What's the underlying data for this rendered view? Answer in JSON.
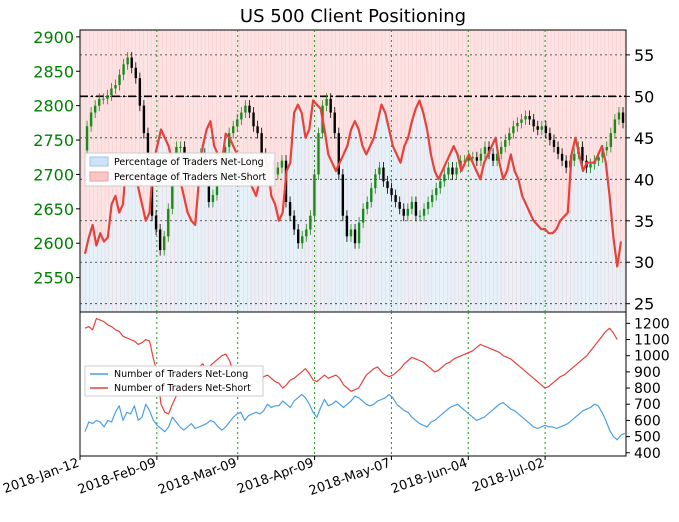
{
  "chart_data": [
    {
      "type": "candlestick-with-line",
      "title": "US 500 Client Positioning",
      "x_ticks": [
        "2018-Jan-12",
        "2018-Feb-09",
        "2018-Mar-09",
        "2018-Apr-09",
        "2018-May-07",
        "2018-Jun-04",
        "2018-Jul-02"
      ],
      "y_left": {
        "ticks": [
          2550,
          2600,
          2650,
          2700,
          2750,
          2800,
          2850,
          2900
        ],
        "range": [
          2500,
          2910
        ],
        "color": "#008000"
      },
      "y_right": {
        "ticks": [
          25,
          30,
          35,
          40,
          45,
          50,
          55
        ],
        "range": [
          24,
          58
        ]
      },
      "legend": {
        "position": "left",
        "entries": [
          "Percentage of Traders Net-Long",
          "Percentage of Traders Net-Short"
        ]
      },
      "reference_line_right": 50,
      "grid": true,
      "series": [
        {
          "name": "Percentage of Traders Net-Short",
          "color": "#e8413a",
          "values": [
            31,
            33,
            34.5,
            32,
            33.5,
            32.5,
            33,
            37,
            38,
            36,
            37,
            43,
            42,
            41,
            39,
            37,
            35,
            36,
            42,
            44,
            46,
            45,
            44,
            42,
            41,
            40,
            38,
            36,
            35,
            34.5,
            40,
            44,
            46,
            47,
            44,
            43,
            42,
            45.5,
            45,
            44,
            43,
            42,
            41,
            40,
            39,
            38,
            40,
            41,
            42,
            38,
            37,
            35,
            36,
            41,
            42,
            48,
            49,
            48,
            45,
            46,
            49.5,
            49,
            48.5,
            46,
            43,
            42,
            41,
            42,
            43,
            44,
            46,
            47,
            46,
            44,
            43,
            44,
            45,
            47,
            49,
            48,
            46,
            44,
            43,
            42,
            44,
            45,
            47,
            48.5,
            49.5,
            48,
            46,
            43,
            41,
            40,
            41,
            42,
            43,
            44,
            43,
            41,
            42,
            43,
            42,
            41,
            40,
            42,
            43,
            44,
            45,
            42,
            40,
            41,
            43,
            41,
            40,
            38,
            37,
            36,
            35,
            34.5,
            34,
            34,
            33.5,
            33.5,
            34,
            35,
            35.5,
            36,
            43,
            45,
            43,
            41,
            42,
            42,
            42,
            43,
            44,
            42,
            38,
            33,
            29.5,
            32.5
          ]
        },
        {
          "name": "US 500",
          "ohlc_close": [
            2735,
            2770,
            2790,
            2800,
            2810,
            2810,
            2815,
            2825,
            2830,
            2845,
            2860,
            2870,
            2855,
            2840,
            2800,
            2760,
            2700,
            2640,
            2620,
            2590,
            2610,
            2650,
            2700,
            2740,
            2740,
            2720,
            2700,
            2710,
            2720,
            2730,
            2700,
            2660,
            2670,
            2700,
            2720,
            2740,
            2760,
            2770,
            2780,
            2790,
            2800,
            2790,
            2770,
            2760,
            2730,
            2720,
            2720,
            2700,
            2710,
            2720,
            2660,
            2640,
            2620,
            2600,
            2610,
            2620,
            2640,
            2700,
            2760,
            2800,
            2810,
            2790,
            2760,
            2700,
            2640,
            2610,
            2620,
            2600,
            2630,
            2650,
            2660,
            2680,
            2700,
            2710,
            2690,
            2680,
            2670,
            2660,
            2650,
            2640,
            2650,
            2660,
            2640,
            2640,
            2650,
            2660,
            2670,
            2680,
            2690,
            2700,
            2710,
            2700,
            2710,
            2720,
            2720,
            2725,
            2725,
            2720,
            2730,
            2740,
            2730,
            2720,
            2730,
            2740,
            2750,
            2760,
            2770,
            2775,
            2780,
            2785,
            2780,
            2770,
            2765,
            2770,
            2760,
            2750,
            2740,
            2730,
            2720,
            2710,
            2720,
            2730,
            2740,
            2720,
            2710,
            2715,
            2720,
            2725,
            2735,
            2740,
            2760,
            2780,
            2790,
            2775
          ]
        }
      ]
    },
    {
      "type": "line",
      "y_right": {
        "ticks": [
          400,
          500,
          600,
          700,
          800,
          900,
          1000,
          1100,
          1200
        ],
        "range": [
          380,
          1270
        ]
      },
      "legend": {
        "position": "left",
        "entries": [
          "Number of Traders Net-Long",
          "Number of Traders Net-Short"
        ]
      },
      "grid": true,
      "series": [
        {
          "name": "Number of Traders Net-Long",
          "color": "#4aa0e6",
          "values": [
            530,
            590,
            580,
            600,
            590,
            560,
            600,
            590,
            650,
            690,
            600,
            650,
            640,
            690,
            600,
            620,
            700,
            660,
            600,
            570,
            550,
            530,
            560,
            620,
            590,
            560,
            540,
            560,
            580,
            550,
            560,
            570,
            580,
            600,
            590,
            560,
            540,
            560,
            590,
            620,
            640,
            650,
            600,
            630,
            640,
            650,
            640,
            660,
            700,
            680,
            690,
            690,
            720,
            700,
            680,
            720,
            740,
            760,
            740,
            700,
            650,
            620,
            680,
            730,
            690,
            700,
            720,
            700,
            680,
            700,
            720,
            750,
            740,
            720,
            700,
            690,
            700,
            720,
            730,
            740,
            760,
            740,
            700,
            680,
            660,
            650,
            620,
            600,
            580,
            570,
            560,
            590,
            600,
            620,
            640,
            660,
            680,
            690,
            700,
            680,
            660,
            640,
            620,
            600,
            610,
            620,
            640,
            660,
            680,
            700,
            710,
            690,
            670,
            660,
            640,
            620,
            600,
            580,
            560,
            550,
            560,
            570,
            560,
            560,
            550,
            560,
            570,
            580,
            600,
            620,
            640,
            660,
            670,
            680,
            700,
            690,
            650,
            600,
            540,
            500,
            480,
            510,
            520
          ]
        },
        {
          "name": "Number of Traders Net-Short",
          "color": "#e8413a",
          "values": [
            1170,
            1180,
            1160,
            1230,
            1220,
            1210,
            1190,
            1180,
            1160,
            1150,
            1120,
            1110,
            1100,
            1090,
            1070,
            1080,
            1100,
            1090,
            980,
            900,
            700,
            650,
            640,
            700,
            750,
            800,
            840,
            860,
            900,
            920,
            930,
            950,
            900,
            940,
            960,
            980,
            1000,
            1010,
            970,
            900,
            870,
            880,
            900,
            870,
            860,
            840,
            830,
            870,
            880,
            860,
            840,
            830,
            800,
            820,
            850,
            860,
            880,
            900,
            920,
            890,
            850,
            840,
            860,
            880,
            860,
            870,
            880,
            860,
            820,
            800,
            780,
            790,
            800,
            840,
            880,
            900,
            920,
            930,
            900,
            880,
            870,
            880,
            900,
            920,
            950,
            970,
            990,
            980,
            970,
            960,
            940,
            920,
            900,
            910,
            930,
            950,
            960,
            980,
            990,
            1000,
            1010,
            1020,
            1030,
            1050,
            1070,
            1060,
            1050,
            1040,
            1030,
            1020,
            1000,
            990,
            980,
            960,
            940,
            920,
            900,
            880,
            860,
            840,
            820,
            800,
            810,
            830,
            850,
            870,
            880,
            900,
            920,
            940,
            960,
            980,
            1000,
            1030,
            1060,
            1090,
            1120,
            1150,
            1170,
            1140,
            1100
          ]
        }
      ]
    }
  ]
}
